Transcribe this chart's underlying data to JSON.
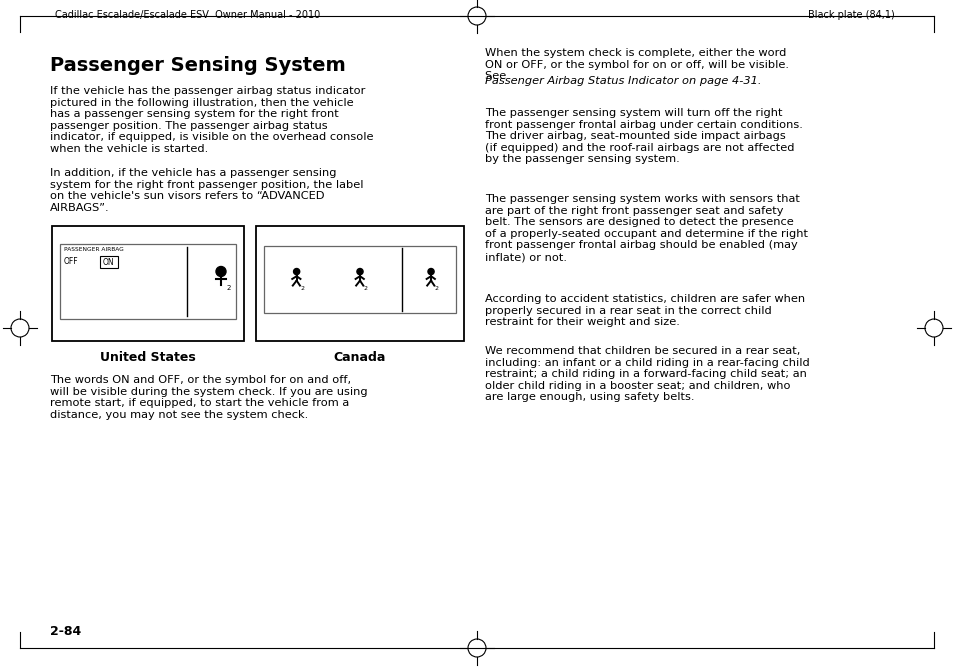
{
  "bg_color": "#ffffff",
  "header_left": "Cadillac Escalade/Escalade ESV  Owner Manual - 2010",
  "header_right": "Black plate (84,1)",
  "footer_text": "2-84",
  "title": "Passenger Sensing System",
  "left_col_paragraphs": [
    "If the vehicle has the passenger airbag status indicator\npictured in the following illustration, then the vehicle\nhas a passenger sensing system for the right front\npassenger position. The passenger airbag status\nindicator, if equipped, is visible on the overhead console\nwhen the vehicle is started.",
    "In addition, if the vehicle has a passenger sensing\nsystem for the right front passenger position, the label\non the vehicle's sun visors refers to “ADVANCED\nAIRBAGS”.",
    "The words ON and OFF, or the symbol for on and off,\nwill be visible during the system check. If you are using\nremote start, if equipped, to start the vehicle from a\ndistance, you may not see the system check."
  ],
  "right_col_paragraphs": [
    "When the system check is complete, either the word\nON or OFF, or the symbol for on or off, will be visible.\nSee ",
    "Passenger Airbag Status Indicator on page 4-31.",
    "The passenger sensing system will turn off the right\nfront passenger frontal airbag under certain conditions.\nThe driver airbag, seat-mounted side impact airbags\n(if equipped) and the roof-rail airbags are not affected\nby the passenger sensing system.",
    "The passenger sensing system works with sensors that\nare part of the right front passenger seat and safety\nbelt. The sensors are designed to detect the presence\nof a properly-seated occupant and determine if the right\nfront passenger frontal airbag should be enabled (may\ninflate) or not.",
    "According to accident statistics, children are safer when\nproperly secured in a rear seat in the correct child\nrestraint for their weight and size.",
    "We recommend that children be secured in a rear seat,\nincluding: an infant or a child riding in a rear-facing child\nrestraint; a child riding in a forward-facing child seat; an\nolder child riding in a booster seat; and children, who\nare large enough, using safety belts."
  ],
  "label_us": "United States",
  "label_canada": "Canada"
}
